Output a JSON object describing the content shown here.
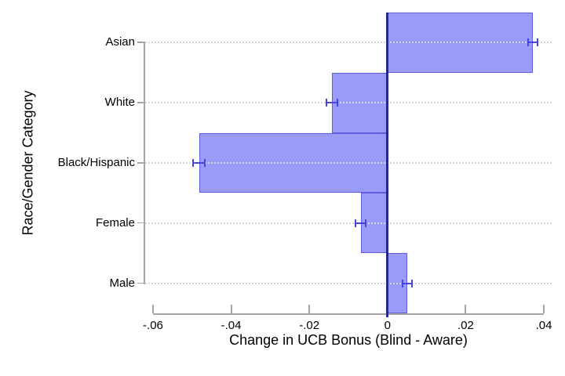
{
  "chart_data": {
    "type": "bar",
    "orientation": "horizontal",
    "xlabel": "Change in UCB Bonus (Blind - Aware)",
    "ylabel": "Race/Gender Category",
    "categories": [
      "Asian",
      "White",
      "Black/Hispanic",
      "Female",
      "Male"
    ],
    "values": [
      0.0371,
      -0.0142,
      -0.0482,
      -0.0068,
      0.005
    ],
    "error_low": [
      0.0359,
      -0.0156,
      -0.0497,
      -0.0082,
      0.0038
    ],
    "error_high": [
      0.0383,
      -0.0128,
      -0.0467,
      -0.0055,
      0.0063
    ],
    "xticks": [
      -0.06,
      -0.04,
      -0.02,
      0,
      0.02,
      0.04
    ],
    "xtick_labels": [
      "-.06",
      "-.04",
      "-.02",
      "0",
      ".02",
      ".04"
    ],
    "xlim": [
      -0.062,
      0.042
    ],
    "grid": "dotted horizontal gridline at each category center, drawn over bars",
    "legend": "none",
    "zero_reference_line": true
  },
  "colors": {
    "bar_fill": "#9a9af8",
    "bar_border": "#5d5de4",
    "error_bar": "#4646dd",
    "zero_line": "#28288f",
    "axis_line": "#a5a5a5",
    "gridline": "#d6d6d6",
    "text": "#000000",
    "background": "#ffffff"
  }
}
